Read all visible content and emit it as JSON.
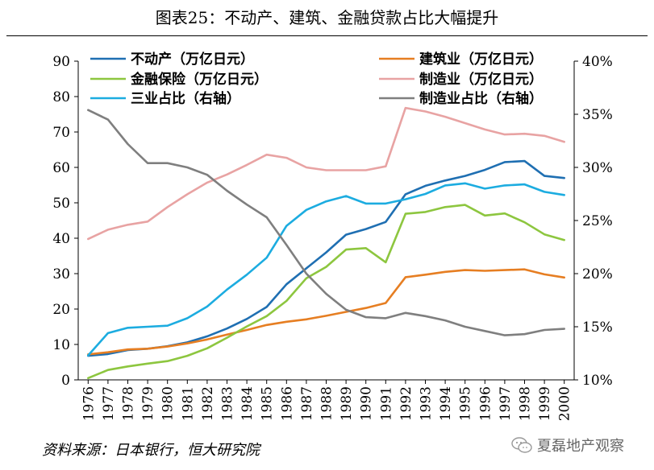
{
  "title": "图表25：不动产、建筑、金融贷款占比大幅提升",
  "source": "资料来源：日本银行，恒大研究院",
  "watermark": "夏磊地产观察",
  "chart_data": {
    "type": "line",
    "x": [
      1976,
      1977,
      1978,
      1979,
      1980,
      1981,
      1982,
      1983,
      1984,
      1985,
      1986,
      1987,
      1988,
      1989,
      1990,
      1991,
      1992,
      1993,
      1994,
      1995,
      1996,
      1997,
      1998,
      1999,
      2000
    ],
    "x_tick_labels": [
      "1976",
      "1977",
      "1978",
      "1979",
      "1980",
      "1981",
      "1982",
      "1983",
      "1984",
      "1985",
      "1986",
      "1987",
      "1988",
      "1989",
      "1990",
      "1991",
      "1992",
      "1993",
      "1994",
      "1995",
      "1996",
      "1997",
      "1998",
      "1999",
      "2000"
    ],
    "ylim_left": [
      0,
      90
    ],
    "y_ticks_left": [
      "0",
      "10",
      "20",
      "30",
      "40",
      "50",
      "60",
      "70",
      "80",
      "90"
    ],
    "ylim_right": [
      10,
      40
    ],
    "y_ticks_right": [
      "10%",
      "15%",
      "20%",
      "25%",
      "30%",
      "35%",
      "40%"
    ],
    "grid": false,
    "legend_position": "top",
    "series": [
      {
        "name": "不动产（万亿日元）",
        "axis": "left",
        "color": "#1f6fb2",
        "values": [
          6.8,
          7.3,
          8.4,
          8.8,
          9.5,
          10.6,
          12.3,
          14.5,
          17.2,
          20.6,
          27.0,
          31.5,
          36.0,
          41.0,
          42.6,
          44.6,
          52.4,
          54.8,
          56.3,
          57.6,
          59.3,
          61.5,
          61.8,
          57.6,
          57.0
        ]
      },
      {
        "name": "建筑业（万亿日元）",
        "axis": "left",
        "color": "#e67e22",
        "values": [
          7.2,
          7.8,
          8.6,
          8.8,
          9.4,
          10.3,
          11.4,
          12.8,
          14.1,
          15.5,
          16.4,
          17.1,
          18.1,
          19.2,
          20.3,
          21.7,
          29.0,
          29.7,
          30.5,
          31.0,
          30.8,
          31.0,
          31.2,
          29.8,
          28.9
        ]
      },
      {
        "name": "金融保险（万亿日元）",
        "axis": "left",
        "color": "#8dc63f",
        "values": [
          0.5,
          2.8,
          3.8,
          4.6,
          5.3,
          6.8,
          8.9,
          11.9,
          15.1,
          18.0,
          22.3,
          28.7,
          31.9,
          36.8,
          37.2,
          33.2,
          46.9,
          47.4,
          48.8,
          49.4,
          46.4,
          47.0,
          44.5,
          41.1,
          39.5
        ]
      },
      {
        "name": "制造业（万亿日元）",
        "axis": "left",
        "color": "#e8a3a3",
        "values": [
          39.8,
          42.4,
          43.8,
          44.7,
          48.8,
          52.4,
          55.7,
          58.0,
          60.7,
          63.6,
          62.7,
          60.0,
          59.2,
          59.2,
          59.2,
          60.3,
          76.8,
          75.8,
          74.3,
          72.5,
          70.7,
          69.3,
          69.5,
          68.9,
          67.2
        ]
      },
      {
        "name": "三业占比（右轴）",
        "axis": "right",
        "color": "#1cace0",
        "values": [
          12.3,
          14.4,
          14.9,
          15.0,
          15.1,
          15.8,
          16.9,
          18.5,
          19.9,
          21.5,
          24.5,
          26.0,
          26.8,
          27.3,
          26.6,
          26.6,
          27.0,
          27.5,
          28.3,
          28.5,
          28.0,
          28.3,
          28.4,
          27.7,
          27.4
        ]
      },
      {
        "name": "制造业占比（右轴）",
        "axis": "right",
        "color": "#7f7f7f",
        "values": [
          35.4,
          34.5,
          32.2,
          30.4,
          30.4,
          30.0,
          29.3,
          27.8,
          26.5,
          25.3,
          22.7,
          20.0,
          18.1,
          16.6,
          15.9,
          15.8,
          16.3,
          16.0,
          15.6,
          15.0,
          14.6,
          14.2,
          14.3,
          14.7,
          14.8
        ]
      }
    ]
  }
}
